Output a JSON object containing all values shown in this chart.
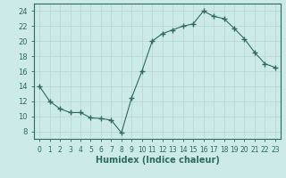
{
  "x": [
    0,
    1,
    2,
    3,
    4,
    5,
    6,
    7,
    8,
    9,
    10,
    11,
    12,
    13,
    14,
    15,
    16,
    17,
    18,
    19,
    20,
    21,
    22,
    23
  ],
  "y": [
    14,
    12,
    11,
    10.5,
    10.5,
    9.8,
    9.7,
    9.5,
    7.8,
    12.5,
    16,
    20,
    21,
    21.5,
    22,
    22.3,
    24,
    23.3,
    23,
    21.7,
    20.3,
    18.5,
    17,
    16.5
  ],
  "line_color": "#2d6b5e",
  "marker": "+",
  "marker_size": 4,
  "bg_color": "#cceae8",
  "grid_color": "#b8d4d0",
  "xlabel": "Humidex (Indice chaleur)",
  "ylim": [
    7,
    25
  ],
  "yticks": [
    8,
    10,
    12,
    14,
    16,
    18,
    20,
    22,
    24
  ],
  "xlim": [
    -0.5,
    23.5
  ],
  "xticks": [
    0,
    1,
    2,
    3,
    4,
    5,
    6,
    7,
    8,
    9,
    10,
    11,
    12,
    13,
    14,
    15,
    16,
    17,
    18,
    19,
    20,
    21,
    22,
    23
  ],
  "xlabel_fontsize": 7,
  "tick_fontsize": 5.5,
  "ytick_fontsize": 6
}
